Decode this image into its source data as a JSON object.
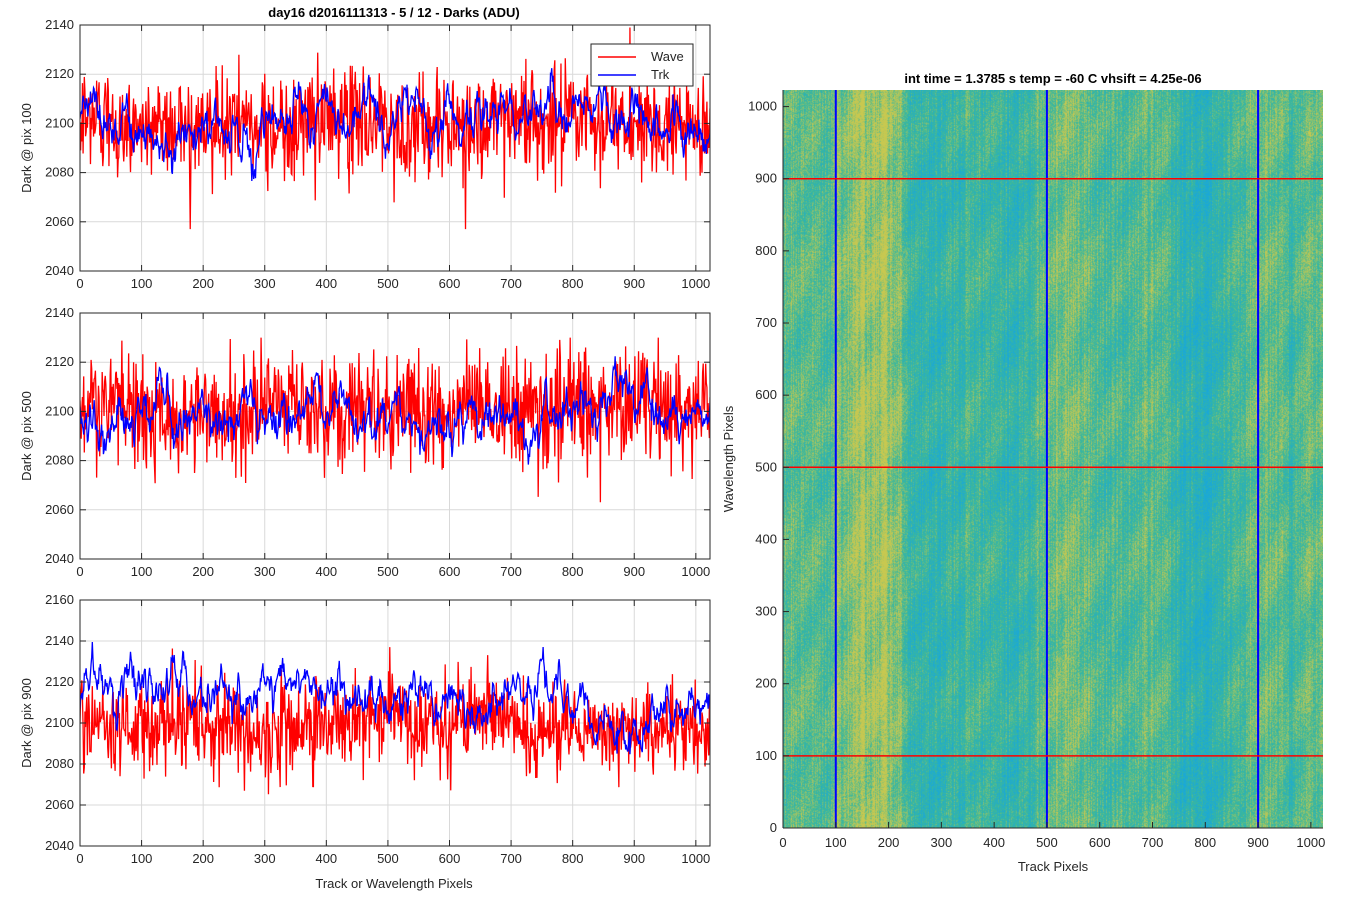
{
  "figure": {
    "suptitle": "day16 d2016111313 - 5 / 12 - Darks (ADU)",
    "left_xlabel": "Track or Wavelength Pixels",
    "legend": [
      "Wave",
      "Trk"
    ],
    "heatmap_title": "int time = 1.3785 s    temp = -60 C    vhsift = 4.25e-06"
  },
  "colors": {
    "wave": "#ff0000",
    "trk": "#0000ff",
    "grid": "#d9d9d9",
    "heat_low": "#1aa8d8",
    "heat_mid": "#3cb89a",
    "heat_high": "#c8c850"
  },
  "chart_data": [
    {
      "type": "line",
      "ylabel": "Dark @ pix 100",
      "xlim": [
        0,
        1023
      ],
      "ylim": [
        2040,
        2140
      ],
      "xticks": [
        0,
        100,
        200,
        300,
        400,
        500,
        600,
        700,
        800,
        900,
        1000
      ],
      "yticks": [
        2040,
        2060,
        2080,
        2100,
        2120,
        2140
      ],
      "grid": true,
      "legend_position": "top-right",
      "series": [
        {
          "name": "Wave",
          "mean": 2100,
          "spread": 11,
          "min": 2057,
          "max": 2139,
          "n": 1024
        },
        {
          "name": "Trk",
          "mean": 2104,
          "spread": 5,
          "min": 2075,
          "max": 2133,
          "n": 1024
        }
      ]
    },
    {
      "type": "line",
      "ylabel": "Dark @ pix 500",
      "xlim": [
        0,
        1023
      ],
      "ylim": [
        2040,
        2140
      ],
      "xticks": [
        0,
        100,
        200,
        300,
        400,
        500,
        600,
        700,
        800,
        900,
        1000
      ],
      "yticks": [
        2040,
        2060,
        2080,
        2100,
        2120,
        2140
      ],
      "grid": true,
      "series": [
        {
          "name": "Wave",
          "mean": 2100,
          "spread": 11,
          "min": 2054,
          "max": 2130,
          "n": 1024
        },
        {
          "name": "Trk",
          "mean": 2100,
          "spread": 5,
          "min": 2051,
          "max": 2140,
          "n": 1024
        }
      ]
    },
    {
      "type": "line",
      "ylabel": "Dark @ pix 900",
      "xlim": [
        0,
        1023
      ],
      "ylim": [
        2040,
        2160
      ],
      "xticks": [
        0,
        100,
        200,
        300,
        400,
        500,
        600,
        700,
        800,
        900,
        1000
      ],
      "yticks": [
        2040,
        2060,
        2080,
        2100,
        2120,
        2140,
        2160
      ],
      "grid": true,
      "series": [
        {
          "name": "Wave",
          "mean": 2100,
          "spread": 11,
          "min": 2049,
          "max": 2137,
          "n": 1024
        },
        {
          "name": "Trk",
          "mean": 2110,
          "spread": 6,
          "min": 2080,
          "max": 2142,
          "n": 1024
        }
      ]
    },
    {
      "type": "heatmap",
      "title": "int time = 1.3785 s    temp = -60 C    vhsift = 4.25e-06",
      "xlabel": "Track Pixels",
      "ylabel": "Wavelength Pixels",
      "xlim": [
        0,
        1023
      ],
      "ylim": [
        0,
        1023
      ],
      "xticks": [
        0,
        100,
        200,
        300,
        400,
        500,
        600,
        700,
        800,
        900,
        1000
      ],
      "yticks": [
        0,
        100,
        200,
        300,
        400,
        500,
        600,
        700,
        800,
        900,
        1000
      ],
      "markers_vertical": [
        100,
        500,
        900
      ],
      "markers_horizontal": [
        100,
        500,
        900
      ]
    }
  ]
}
